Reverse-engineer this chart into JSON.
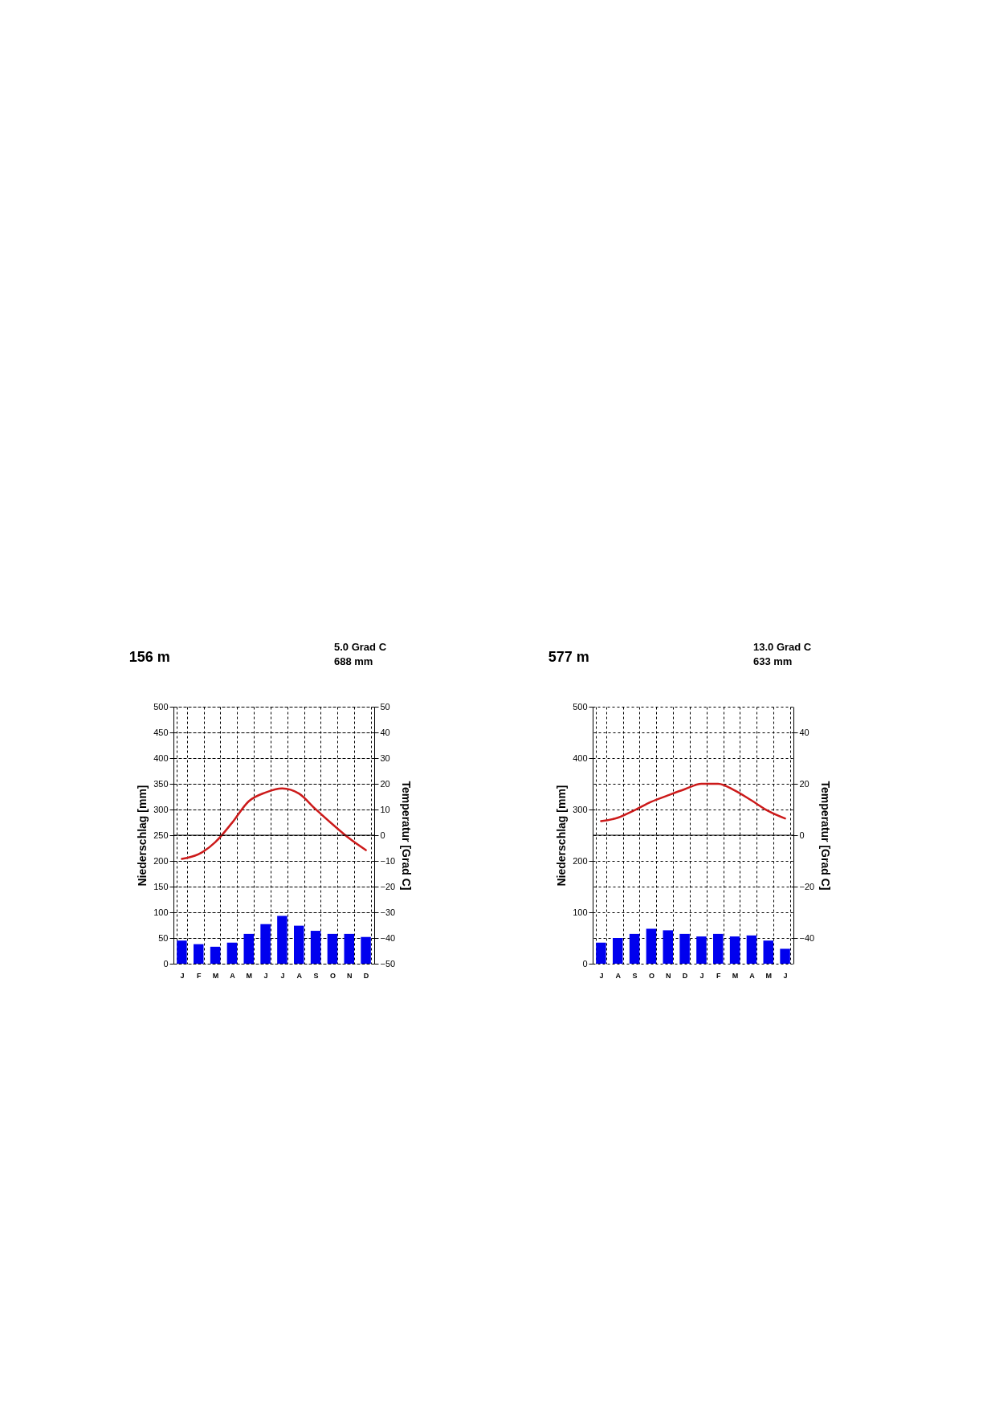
{
  "chart_data": [
    {
      "type": "bar",
      "title": "156 m",
      "annotations": [
        "5.0 Grad C",
        "688 mm"
      ],
      "categories": [
        "J",
        "F",
        "M",
        "A",
        "M",
        "J",
        "J",
        "A",
        "S",
        "O",
        "N",
        "D"
      ],
      "ylabel": "Niederschlag [mm]",
      "y2label": "Temperatur [Grad C]",
      "ylim": [
        0,
        500
      ],
      "yticks": [
        0,
        50,
        100,
        150,
        200,
        250,
        300,
        350,
        400,
        450,
        500
      ],
      "y2lim": [
        -50,
        50
      ],
      "y2ticks": [
        -50,
        -40,
        -30,
        -20,
        -10,
        0,
        10,
        20,
        30,
        40,
        50
      ],
      "grid": true,
      "ref_lines": [
        {
          "axis": "y2",
          "value": 0
        }
      ],
      "series": [
        {
          "color": "#0000ee",
          "values": [
            45,
            38,
            33,
            41,
            58,
            77,
            93,
            74,
            64,
            58,
            58,
            52
          ]
        },
        {
          "type": "line",
          "axis": "y2",
          "color": "#cc1a1a",
          "values": [
            -9.2,
            -7.4,
            -2.7,
            4.8,
            13.2,
            16.6,
            18.2,
            16.2,
            10.1,
            4.3,
            -1.2,
            -5.8
          ]
        }
      ]
    },
    {
      "type": "bar",
      "title": "577 m",
      "annotations": [
        "13.0 Grad C",
        "633 mm"
      ],
      "categories": [
        "J",
        "A",
        "S",
        "O",
        "N",
        "D",
        "J",
        "F",
        "M",
        "A",
        "M",
        "J"
      ],
      "ylabel": "Niederschlag [mm]",
      "y2label": "Temperatur [Grad C]",
      "ylim": [
        0,
        500
      ],
      "yticks": [
        0,
        100,
        200,
        300,
        400,
        500
      ],
      "y2lim": [
        -50,
        50
      ],
      "y2ticks": [
        -40,
        -20,
        0,
        20,
        40
      ],
      "grid": true,
      "ref_lines": [
        {
          "axis": "y2",
          "value": 0
        }
      ],
      "series": [
        {
          "color": "#0000ee",
          "values": [
            41,
            50,
            58,
            68,
            65,
            58,
            53,
            58,
            53,
            55,
            45,
            29
          ]
        },
        {
          "type": "line",
          "axis": "y2",
          "color": "#cc1a1a",
          "values": [
            5.5,
            6.8,
            9.7,
            13,
            15.5,
            17.9,
            20,
            20,
            17.4,
            13.5,
            9.4,
            6.5
          ]
        }
      ]
    }
  ]
}
